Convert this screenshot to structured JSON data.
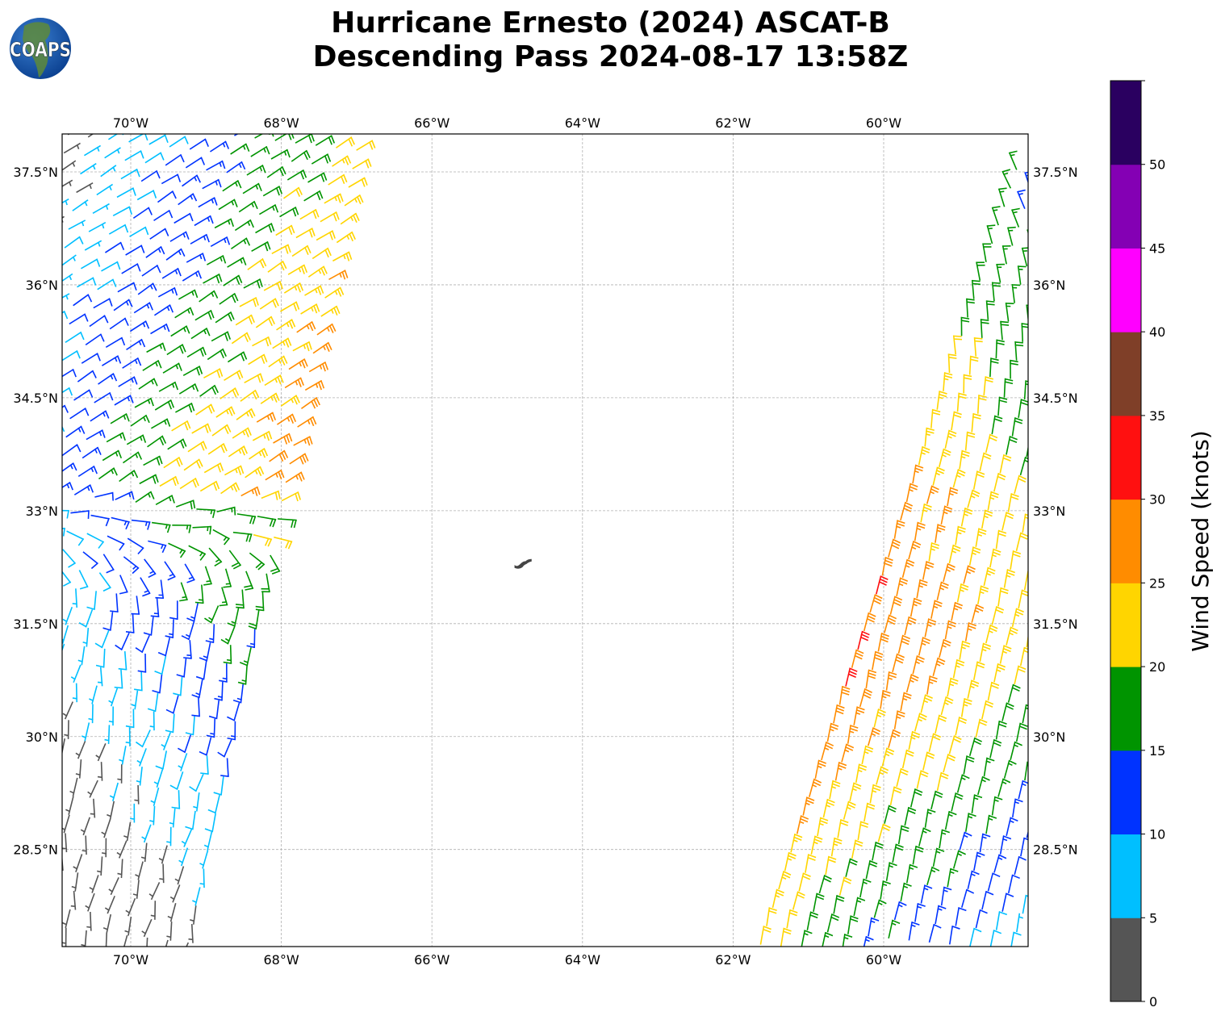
{
  "title": {
    "line1": "Hurricane Ernesto (2024) ASCAT-B",
    "line2": "Descending Pass 2024-08-17 13:58Z"
  },
  "logo": {
    "text": "COAPS",
    "icon": "globe-icon"
  },
  "map": {
    "lon_range": [
      -70.91,
      -58.08
    ],
    "lat_range": [
      27.2,
      38.0
    ],
    "lon_ticks": [
      {
        "value": -70,
        "label": "70°W"
      },
      {
        "value": -68,
        "label": "68°W"
      },
      {
        "value": -66,
        "label": "66°W"
      },
      {
        "value": -64,
        "label": "64°W"
      },
      {
        "value": -62,
        "label": "62°W"
      },
      {
        "value": -60,
        "label": "60°W"
      }
    ],
    "lat_ticks": [
      {
        "value": 37.5,
        "label": "37.5°N"
      },
      {
        "value": 36,
        "label": "36°N"
      },
      {
        "value": 34.5,
        "label": "34.5°N"
      },
      {
        "value": 33,
        "label": "33°N"
      },
      {
        "value": 31.5,
        "label": "31.5°N"
      },
      {
        "value": 30,
        "label": "30°N"
      },
      {
        "value": 28.5,
        "label": "28.5°N"
      }
    ],
    "gridlines": true,
    "island": {
      "name": "Bermuda",
      "lon": -64.8,
      "lat": 32.32,
      "color": "#444444"
    }
  },
  "chart_data": {
    "type": "wind-barb-map",
    "units": "knots",
    "swaths": [
      {
        "id": "west",
        "edge_south": [
          -69.2,
          27.2
        ],
        "edge_north": [
          -66.9,
          38.0
        ],
        "side": "west",
        "width_deg": 5.0
      },
      {
        "id": "east",
        "edge_south": [
          -61.7,
          27.2
        ],
        "edge_north": [
          -58.3,
          37.5
        ],
        "side": "east",
        "width_deg": 4.0
      }
    ]
  },
  "colorbar": {
    "label": "Wind Speed (knots)",
    "min": 0,
    "max": 55,
    "step": 5,
    "tick_labels": [
      "0",
      "5",
      "10",
      "15",
      "20",
      "25",
      "30",
      "35",
      "40",
      "45",
      "50"
    ],
    "colors": [
      "#555555",
      "#00bfff",
      "#0033ff",
      "#009400",
      "#ffd500",
      "#ff8c00",
      "#ff1010",
      "#7f3f28",
      "#ff00ff",
      "#8400b4",
      "#2a0060"
    ]
  }
}
